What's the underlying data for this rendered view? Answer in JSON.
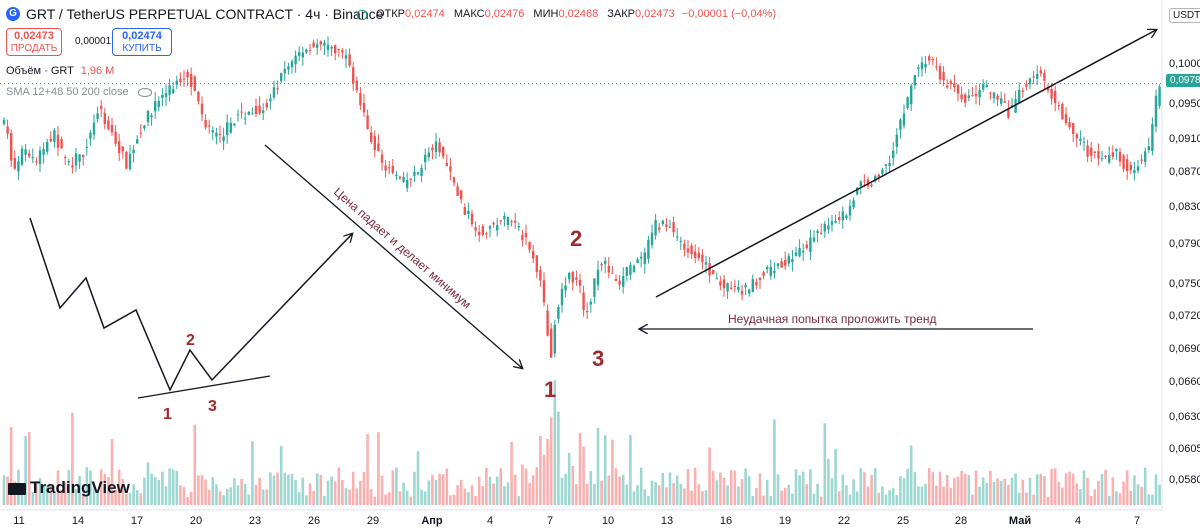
{
  "header": {
    "title": "GRT / TetherUS PERPETUAL CONTRACT · 4ч · Binance",
    "symbol_letter": "G",
    "ohlc": [
      {
        "label": "ОТКР",
        "value": "0,02474"
      },
      {
        "label": "МАКС",
        "value": "0,02476"
      },
      {
        "label": "МИН",
        "value": "0,02468"
      },
      {
        "label": "ЗАКР",
        "value": "0,02473"
      }
    ],
    "change": "−0,00001 (−0,04%)",
    "sell_price": "0,02473",
    "sell_label": "ПРОДАТЬ",
    "spread": "0,00001",
    "buy_price": "0,02474",
    "buy_label": "КУПИТЬ",
    "volume_label": "Объём · GRT",
    "volume_value": "1,96 M",
    "sma_label": "SMA 12+48 50 200 close",
    "currency": "USDT",
    "current_price": "0,0978",
    "brand": "TradingView"
  },
  "colors": {
    "up": "#26a69a",
    "down": "#ef5350",
    "annotation_red": "#9e2a2b",
    "annotation_text": "#7a2a3a",
    "current_price_tag": "#26a69a"
  },
  "chart_data": {
    "type": "candlestick",
    "y_ticks": [
      "0,1000",
      "0,0950",
      "0,0910",
      "0,0870",
      "0,0830",
      "0,0790",
      "0,0750",
      "0,0720",
      "0,0690",
      "0,0660",
      "0,0630",
      "0,0605",
      "0,0580"
    ],
    "x_ticks": [
      "11",
      "14",
      "17",
      "20",
      "23",
      "26",
      "29",
      "Апр",
      "4",
      "7",
      "10",
      "13",
      "16",
      "19",
      "22",
      "25",
      "28",
      "Май",
      "4",
      "7"
    ],
    "ylim": [
      0.057,
      0.1027
    ],
    "series_path": [
      [
        0,
        0.0945
      ],
      [
        8,
        0.093
      ],
      [
        16,
        0.088
      ],
      [
        24,
        0.0905
      ],
      [
        38,
        0.0895
      ],
      [
        55,
        0.0925
      ],
      [
        70,
        0.089
      ],
      [
        85,
        0.0905
      ],
      [
        100,
        0.095
      ],
      [
        112,
        0.093
      ],
      [
        128,
        0.0892
      ],
      [
        145,
        0.0935
      ],
      [
        160,
        0.096
      ],
      [
        175,
        0.0975
      ],
      [
        190,
        0.099
      ],
      [
        205,
        0.094
      ],
      [
        220,
        0.0918
      ],
      [
        235,
        0.094
      ],
      [
        255,
        0.095
      ],
      [
        270,
        0.0955
      ],
      [
        285,
        0.099
      ],
      [
        300,
        0.101
      ],
      [
        315,
        0.102
      ],
      [
        330,
        0.1015
      ],
      [
        345,
        0.101
      ],
      [
        352,
        0.0995
      ],
      [
        365,
        0.0945
      ],
      [
        375,
        0.0912
      ],
      [
        390,
        0.0885
      ],
      [
        405,
        0.0872
      ],
      [
        418,
        0.088
      ],
      [
        430,
        0.0905
      ],
      [
        440,
        0.0912
      ],
      [
        452,
        0.088
      ],
      [
        465,
        0.0845
      ],
      [
        480,
        0.082
      ],
      [
        495,
        0.0825
      ],
      [
        510,
        0.0835
      ],
      [
        525,
        0.0815
      ],
      [
        535,
        0.079
      ],
      [
        542,
        0.0775
      ],
      [
        548,
        0.072
      ],
      [
        553,
        0.0688
      ],
      [
        558,
        0.0735
      ],
      [
        565,
        0.0765
      ],
      [
        572,
        0.0772
      ],
      [
        580,
        0.0768
      ],
      [
        586,
        0.073
      ],
      [
        592,
        0.0745
      ],
      [
        598,
        0.0775
      ],
      [
        604,
        0.079
      ],
      [
        612,
        0.0775
      ],
      [
        620,
        0.076
      ],
      [
        630,
        0.078
      ],
      [
        645,
        0.079
      ],
      [
        658,
        0.0828
      ],
      [
        672,
        0.0825
      ],
      [
        690,
        0.08
      ],
      [
        710,
        0.078
      ],
      [
        725,
        0.076
      ],
      [
        745,
        0.0755
      ],
      [
        760,
        0.077
      ],
      [
        775,
        0.078
      ],
      [
        790,
        0.079
      ],
      [
        810,
        0.0805
      ],
      [
        830,
        0.083
      ],
      [
        848,
        0.084
      ],
      [
        862,
        0.087
      ],
      [
        878,
        0.0875
      ],
      [
        892,
        0.09
      ],
      [
        905,
        0.0945
      ],
      [
        918,
        0.0995
      ],
      [
        932,
        0.1005
      ],
      [
        945,
        0.098
      ],
      [
        958,
        0.097
      ],
      [
        970,
        0.096
      ],
      [
        985,
        0.0975
      ],
      [
        1000,
        0.096
      ],
      [
        1012,
        0.0945
      ],
      [
        1025,
        0.0975
      ],
      [
        1038,
        0.099
      ],
      [
        1050,
        0.0975
      ],
      [
        1062,
        0.095
      ],
      [
        1075,
        0.0925
      ],
      [
        1090,
        0.0905
      ],
      [
        1105,
        0.0895
      ],
      [
        1118,
        0.0905
      ],
      [
        1130,
        0.0885
      ],
      [
        1142,
        0.0895
      ],
      [
        1150,
        0.0905
      ],
      [
        1155,
        0.0935
      ],
      [
        1160,
        0.0978
      ]
    ]
  },
  "annotations": {
    "falling_text": "Цена падает и делает минимум",
    "failed_text": "Неудачная попытка проложить тренд",
    "point_labels": [
      "1",
      "2",
      "3"
    ]
  }
}
